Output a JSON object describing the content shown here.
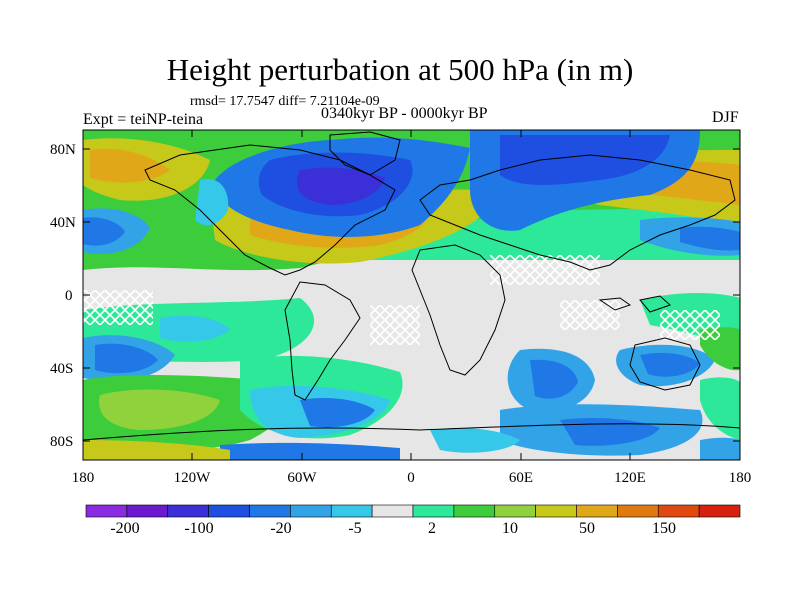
{
  "title": "Height perturbation at 500 hPa (in m)",
  "stats": "rmsd= 17.7547 diff= 7.21104e-09",
  "experiment": "Expt = teiNP-teina",
  "period": "0340kyr BP - 0000kyr BP",
  "season": "DJF",
  "lat_labels": [
    "80N",
    "40N",
    "0",
    "40S",
    "80S"
  ],
  "lon_labels": [
    "180",
    "120W",
    "60W",
    "0",
    "60E",
    "120E",
    "180"
  ],
  "colorbar": {
    "labels": [
      "-200",
      "-100",
      "-20",
      "-5",
      "2",
      "10",
      "50",
      "150"
    ],
    "colors": [
      "#8a2be2",
      "#6a1bd0",
      "#3b2fd8",
      "#1f4fe0",
      "#1f78e6",
      "#33a3e8",
      "#35c8e8",
      "#e6e6e6",
      "#2ee89a",
      "#3ccc3c",
      "#8fd23c",
      "#c6c81a",
      "#e0a818",
      "#e07a10",
      "#e04a10",
      "#d82010"
    ]
  },
  "colors": {
    "land_outline": "#000000",
    "neutral": "#e6e6e6"
  }
}
